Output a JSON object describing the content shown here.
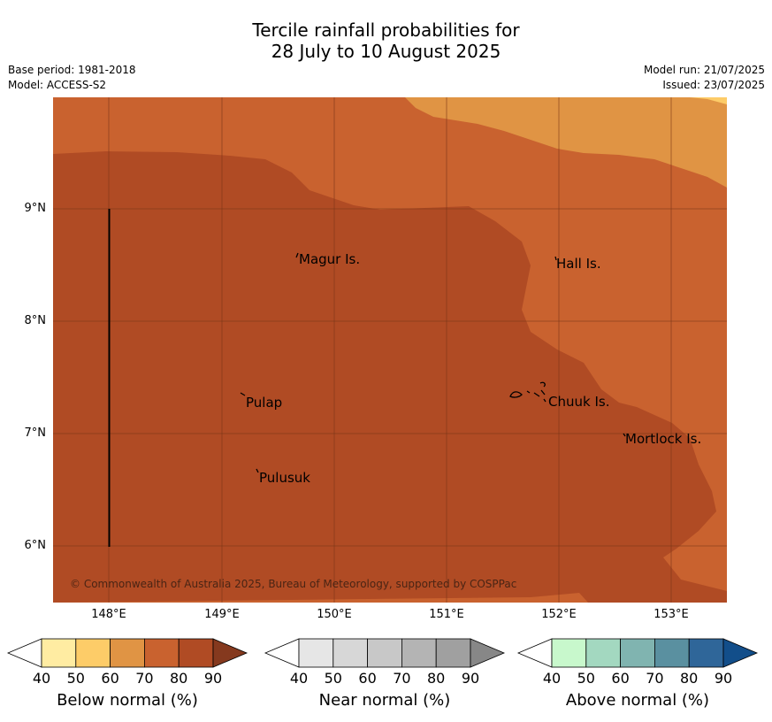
{
  "header": {
    "title_line1": "Tercile rainfall probabilities for",
    "title_line2": "28 July to 10 August 2025",
    "base_period": "Base period: 1981-2018",
    "model": "Model: ACCESS-S2",
    "model_run": "Model run: 21/07/2025",
    "issued": "Issued: 23/07/2025"
  },
  "map": {
    "latitude_labels": [
      "9°N",
      "8°N",
      "7°N",
      "6°N"
    ],
    "longitude_labels": [
      "148°E",
      "149°E",
      "150°E",
      "151°E",
      "152°E",
      "153°E"
    ],
    "places": [
      {
        "name": "Magur Is."
      },
      {
        "name": "Hall Is."
      },
      {
        "name": "Pulap"
      },
      {
        "name": "Chuuk Is."
      },
      {
        "name": "Mortlock Is."
      },
      {
        "name": "Pulusuk"
      }
    ],
    "copyright": "© Commonwealth of Australia 2025, Bureau of Meteorology, supported by COSPPac",
    "colors": {
      "below_80": "#b04b24",
      "below_70": "#c9622f",
      "below_60": "#e09444",
      "below_50": "#fdcc68"
    }
  },
  "colorbars": [
    {
      "title": "Below normal (%)",
      "ticks": [
        "40",
        "50",
        "60",
        "70",
        "80",
        "90"
      ],
      "colors": [
        "#ffffff",
        "#ffeca2",
        "#fdcc68",
        "#e09444",
        "#c9622f",
        "#b04b24",
        "#85391e"
      ]
    },
    {
      "title": "Near normal (%)",
      "ticks": [
        "40",
        "50",
        "60",
        "70",
        "80",
        "90"
      ],
      "colors": [
        "#ffffff",
        "#e6e6e6",
        "#d7d7d7",
        "#c8c8c8",
        "#b4b4b4",
        "#a0a0a0",
        "#878787"
      ]
    },
    {
      "title": "Above normal (%)",
      "ticks": [
        "40",
        "50",
        "60",
        "70",
        "80",
        "90"
      ],
      "colors": [
        "#ffffff",
        "#c8f8cc",
        "#a3d8c0",
        "#80b4b0",
        "#5a90a0",
        "#2f6699",
        "#124e8a"
      ]
    }
  ]
}
